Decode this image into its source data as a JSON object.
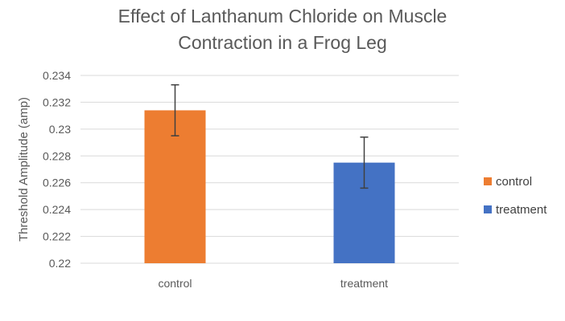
{
  "chart_data": {
    "type": "bar",
    "title_lines": [
      "Effect of Lanthanum Chloride on Muscle",
      "Contraction in a Frog Leg"
    ],
    "xlabel": "",
    "ylabel": "Threshold Amplitude (amp)",
    "categories": [
      "control",
      "treatment"
    ],
    "values": [
      0.2314,
      0.2275
    ],
    "error_low": [
      0.2295,
      0.2256
    ],
    "error_high": [
      0.2333,
      0.2294
    ],
    "colors": [
      "#ED7D31",
      "#4472C4"
    ],
    "ylim": [
      0.22,
      0.234
    ],
    "yticks": [
      "0.22",
      "0.222",
      "0.224",
      "0.226",
      "0.228",
      "0.23",
      "0.232",
      "0.234"
    ],
    "grid": true,
    "legend": {
      "position": "right",
      "entries": [
        {
          "label": "control",
          "color": "#ED7D31"
        },
        {
          "label": "treatment",
          "color": "#4472C4"
        }
      ]
    }
  }
}
